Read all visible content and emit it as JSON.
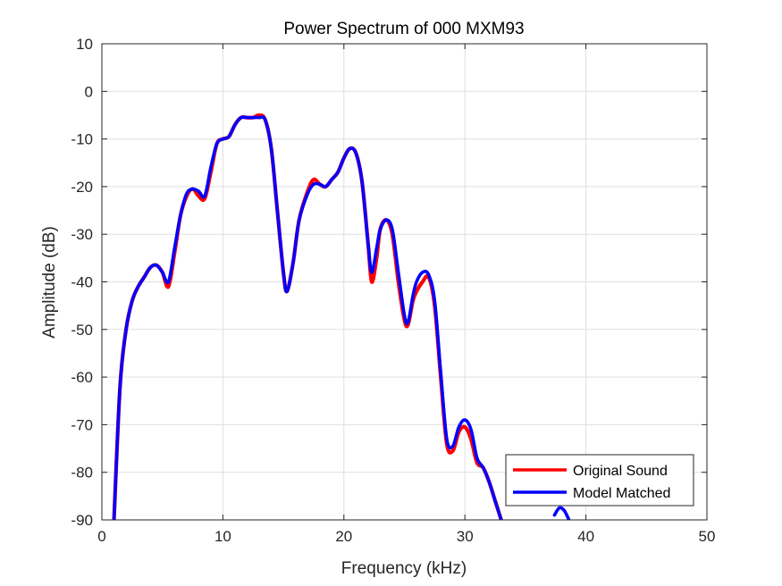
{
  "chart_data": {
    "type": "line",
    "title": "Power Spectrum of 000 MXM93",
    "xlabel": "Frequency (kHz)",
    "ylabel": "Amplitude (dB)",
    "xlim": [
      0,
      50
    ],
    "ylim": [
      -90,
      10
    ],
    "xticks": [
      0,
      10,
      20,
      30,
      40,
      50
    ],
    "yticks": [
      10,
      0,
      -10,
      -20,
      -30,
      -40,
      -50,
      -60,
      -70,
      -80,
      -90
    ],
    "grid": true,
    "legend_position": "bottom-right",
    "series": [
      {
        "name": "Original Sound",
        "color": "#ff0000",
        "x": [
          1.0,
          1.5,
          2.0,
          2.5,
          3.0,
          3.5,
          4.0,
          4.5,
          5.0,
          5.5,
          6.0,
          6.5,
          7.0,
          7.5,
          8.0,
          8.5,
          9.0,
          9.5,
          10.0,
          10.5,
          11.0,
          11.5,
          12.0,
          12.5,
          13.0,
          13.5,
          14.0,
          14.5,
          15.0,
          15.3,
          15.8,
          16.3,
          17.0,
          17.5,
          18.0,
          18.5,
          19.0,
          19.5,
          20.0,
          20.5,
          21.0,
          21.5,
          22.0,
          22.3,
          22.7,
          23.0,
          23.5,
          24.0,
          24.5,
          25.0,
          25.3,
          25.7,
          26.0,
          26.5,
          27.0,
          27.5,
          28.0,
          28.5,
          29.0,
          29.5,
          30.0,
          30.5,
          31.0,
          31.5,
          32.0,
          32.5,
          33.0
        ],
        "y": [
          -90,
          -62,
          -50,
          -44,
          -41,
          -39,
          -37,
          -36.5,
          -38,
          -41,
          -34,
          -26,
          -22,
          -20.5,
          -22,
          -22.5,
          -17,
          -11,
          -10,
          -9.5,
          -7,
          -5.5,
          -5.5,
          -5.5,
          -5,
          -6,
          -12,
          -25,
          -38,
          -42,
          -36,
          -27,
          -21,
          -18.5,
          -19.5,
          -20,
          -18.5,
          -17,
          -14,
          -12,
          -13,
          -19,
          -32,
          -40,
          -35,
          -29,
          -27,
          -30,
          -40,
          -48,
          -49,
          -44,
          -42,
          -40,
          -39,
          -45,
          -60,
          -74,
          -75.5,
          -71.5,
          -70.5,
          -73,
          -78,
          -79,
          -82,
          -86,
          -90
        ]
      },
      {
        "name": "Model Matched",
        "color": "#0000ff",
        "x": [
          1.0,
          1.5,
          2.0,
          2.5,
          3.0,
          3.5,
          4.0,
          4.5,
          5.0,
          5.5,
          6.0,
          6.5,
          7.0,
          7.5,
          8.0,
          8.5,
          9.0,
          9.5,
          10.0,
          10.5,
          11.0,
          11.5,
          12.0,
          12.5,
          13.0,
          13.5,
          14.0,
          14.5,
          15.0,
          15.3,
          15.8,
          16.3,
          17.0,
          17.5,
          18.0,
          18.5,
          19.0,
          19.5,
          20.0,
          20.5,
          21.0,
          21.5,
          22.0,
          22.3,
          22.7,
          23.0,
          23.5,
          24.0,
          24.5,
          25.0,
          25.3,
          25.7,
          26.0,
          26.5,
          27.0,
          27.5,
          28.0,
          28.5,
          29.0,
          29.5,
          30.0,
          30.5,
          31.0,
          31.5,
          32.0,
          32.5,
          33.0,
          37.4,
          37.8,
          38.2,
          38.6
        ],
        "y": [
          -90,
          -62,
          -50,
          -44,
          -41,
          -39,
          -37,
          -36.5,
          -38,
          -40,
          -33,
          -26,
          -21.5,
          -20.5,
          -21,
          -22,
          -16,
          -11,
          -10,
          -9.5,
          -7,
          -5.5,
          -5.5,
          -5.5,
          -5.5,
          -6,
          -12,
          -25,
          -38,
          -42,
          -36,
          -27,
          -21.5,
          -19.5,
          -19.5,
          -20,
          -18.5,
          -17,
          -14,
          -12,
          -13,
          -19,
          -32,
          -38,
          -33,
          -29,
          -27,
          -29,
          -38,
          -47,
          -48.5,
          -43,
          -40,
          -38,
          -38.5,
          -44,
          -59,
          -73,
          -74.5,
          -70.5,
          -69,
          -71,
          -77,
          -79,
          -82,
          -86,
          -90,
          -89,
          -87.5,
          -88,
          -90
        ]
      }
    ]
  }
}
